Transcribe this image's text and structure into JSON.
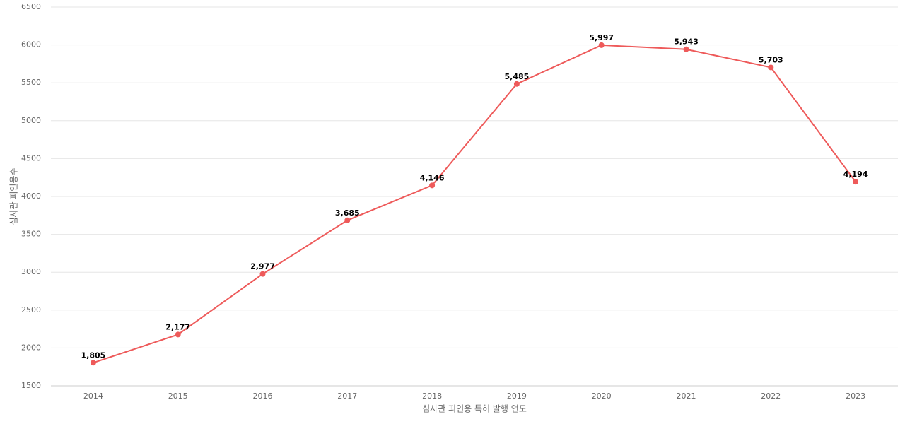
{
  "chart_data": {
    "type": "line",
    "x_label": "심사관 피인용 특허 발행 연도",
    "y_label": "심사관 피인용수",
    "categories": [
      "2014",
      "2015",
      "2016",
      "2017",
      "2018",
      "2019",
      "2020",
      "2021",
      "2022",
      "2023"
    ],
    "series": [
      {
        "name": "심사관 피인용수",
        "color": "#ee5a5a",
        "values": [
          1805,
          2177,
          2977,
          3685,
          4146,
          5485,
          5997,
          5943,
          5703,
          4194
        ],
        "value_labels": [
          "1,805",
          "2,177",
          "2,977",
          "3,685",
          "4,146",
          "5,485",
          "5,997",
          "5,943",
          "5,703",
          "4,194"
        ]
      }
    ],
    "ylim": [
      1500,
      6500
    ],
    "yticks": [
      1500,
      2000,
      2500,
      3000,
      3500,
      4000,
      4500,
      5000,
      5500,
      6000,
      6500
    ],
    "grid": true
  }
}
